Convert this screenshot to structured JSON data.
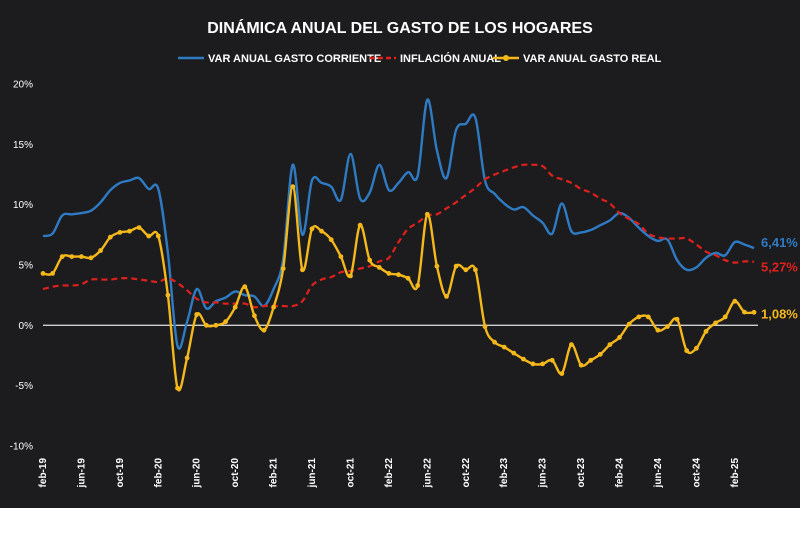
{
  "chart_data": {
    "type": "line",
    "title": "DINÁMICA ANUAL DEL GASTO DE LOS HOGARES",
    "xlabel": "",
    "ylabel": "",
    "ylim": [
      -10,
      20
    ],
    "yticks": [
      20,
      15,
      10,
      5,
      0,
      -5,
      -10
    ],
    "ytick_labels": [
      "20%",
      "15%",
      "10%",
      "5%",
      "0%",
      "-5%",
      "-10%"
    ],
    "x_start": "feb-19",
    "x_end": "feb-25",
    "xtick_labels": [
      "feb-19",
      "jun-19",
      "oct-19",
      "feb-20",
      "jun-20",
      "oct-20",
      "feb-21",
      "jun-21",
      "oct-21",
      "feb-22",
      "jun-22",
      "oct-22",
      "feb-23",
      "jun-23",
      "oct-23",
      "feb-24",
      "jun-24",
      "oct-24",
      "feb-25"
    ],
    "legend_position": "top",
    "colors": {
      "corriente": "#2e7bc4",
      "inflacion": "#e0201b",
      "real": "#f5b81b",
      "zero_line": "#d0d0d0"
    },
    "series": [
      {
        "key": "corriente",
        "name": "VAR ANUAL GASTO CORRIENTE",
        "color": "#2e7bc4",
        "style": "solid",
        "values": [
          7.4,
          7.6,
          9.1,
          9.2,
          9.3,
          9.5,
          10.2,
          11.2,
          11.8,
          12.0,
          12.2,
          11.3,
          11.3,
          6.0,
          -1.7,
          0.3,
          3.0,
          1.4,
          2.0,
          2.3,
          2.8,
          2.5,
          2.4,
          1.6,
          3.0,
          5.5,
          13.3,
          7.5,
          12.0,
          11.8,
          11.5,
          10.4,
          14.2,
          10.5,
          11.0,
          13.3,
          11.2,
          11.8,
          12.7,
          12.4,
          18.7,
          14.5,
          12.2,
          16.2,
          16.7,
          17.2,
          12.0,
          10.9,
          10.1,
          9.6,
          9.8,
          9.1,
          8.5,
          7.6,
          10.1,
          7.8,
          7.7,
          7.9,
          8.3,
          8.7,
          9.3,
          8.9,
          8.1,
          7.4,
          7.0,
          7.1,
          5.4,
          4.6,
          4.8,
          5.6,
          6.0,
          5.8,
          6.9,
          6.7,
          6.4
        ]
      },
      {
        "key": "inflacion",
        "name": "INFLACIÓN ANUAL",
        "color": "#e0201b",
        "style": "dashed",
        "values": [
          3.0,
          3.2,
          3.3,
          3.3,
          3.4,
          3.8,
          3.8,
          3.8,
          3.9,
          3.9,
          3.8,
          3.7,
          3.6,
          3.9,
          3.5,
          2.9,
          2.2,
          1.9,
          1.9,
          1.8,
          1.8,
          1.8,
          1.5,
          1.6,
          1.6,
          1.6,
          1.6,
          2.0,
          3.3,
          3.8,
          4.0,
          4.4,
          4.5,
          4.7,
          4.9,
          5.3,
          5.6,
          6.9,
          8.0,
          8.5,
          9.1,
          9.2,
          9.7,
          10.2,
          10.8,
          11.4,
          12.1,
          12.5,
          12.8,
          13.1,
          13.3,
          13.3,
          13.2,
          12.4,
          12.1,
          11.8,
          11.3,
          11.0,
          10.5,
          10.1,
          9.3,
          8.8,
          8.4,
          7.6,
          7.3,
          7.2,
          7.2,
          7.2,
          6.7,
          6.1,
          5.8,
          5.4,
          5.2,
          5.3,
          5.27
        ]
      },
      {
        "key": "real",
        "name": "VAR ANUAL GASTO REAL",
        "color": "#f5b81b",
        "style": "solid-dots",
        "values": [
          4.3,
          4.3,
          5.7,
          5.7,
          5.7,
          5.6,
          6.2,
          7.3,
          7.7,
          7.8,
          8.1,
          7.4,
          7.4,
          2.5,
          -5.2,
          -2.7,
          0.9,
          0.0,
          0.0,
          0.3,
          1.5,
          3.2,
          0.8,
          -0.4,
          1.5,
          4.7,
          11.5,
          4.6,
          8.0,
          7.8,
          7.1,
          5.7,
          4.1,
          8.3,
          5.4,
          4.8,
          4.3,
          4.2,
          3.9,
          3.3,
          9.2,
          4.9,
          2.4,
          4.9,
          4.6,
          4.6,
          -0.1,
          -1.4,
          -1.8,
          -2.3,
          -2.8,
          -3.2,
          -3.2,
          -2.9,
          -4.0,
          -1.6,
          -3.3,
          -2.9,
          -2.4,
          -1.6,
          -1.0,
          0.1,
          0.7,
          0.7,
          -0.4,
          -0.1,
          0.5,
          -2.1,
          -1.9,
          -0.5,
          0.2,
          0.7,
          2.0,
          1.1,
          1.08
        ]
      }
    ],
    "end_labels": [
      {
        "key": "corriente",
        "text": "6,41%",
        "value": 6.41,
        "color": "#2e7bc4"
      },
      {
        "key": "inflacion",
        "text": "5,27%",
        "value": 5.27,
        "color": "#e0201b"
      },
      {
        "key": "real",
        "text": "1,08%",
        "value": 1.08,
        "color": "#f5b81b"
      }
    ]
  }
}
